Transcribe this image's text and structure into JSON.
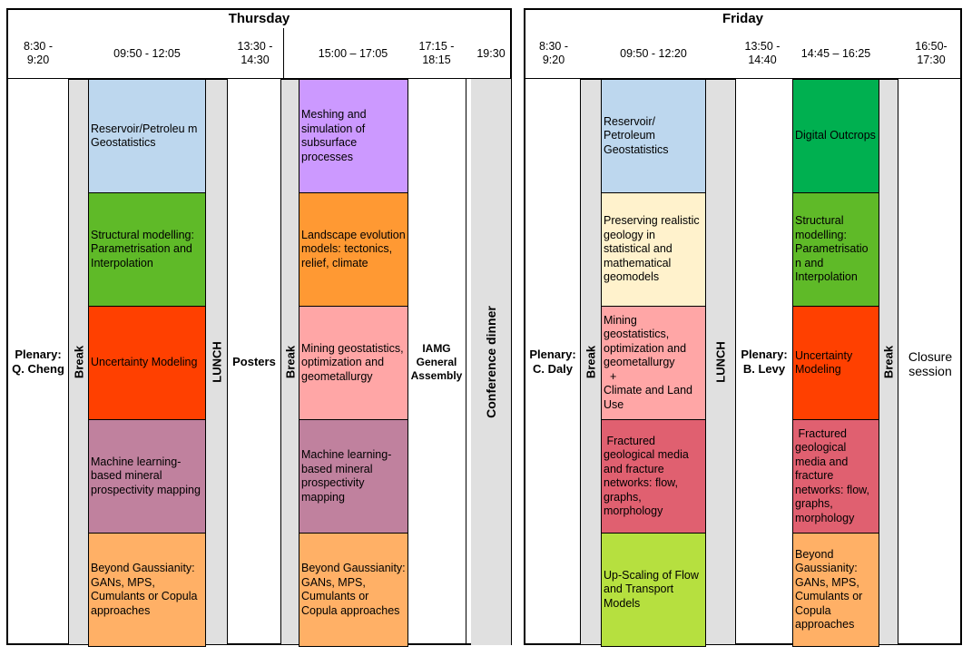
{
  "thursday": {
    "title": "Thursday",
    "times": [
      "8:30 -\n9:20",
      "09:50 - 12:05",
      "13:30 -\n14:30",
      "15:00 – 17:05",
      "17:15 -\n18:15",
      "19:30"
    ],
    "plenary": "Plenary:\nQ. Cheng",
    "break1": "Break",
    "lunch": "LUNCH",
    "posters": "Posters",
    "break2": "Break",
    "assembly": "IAMG\nGeneral\nAssembly",
    "dinner": "Conference dinner",
    "col1": [
      {
        "text": "Reservoir/Petroleu m Geostatistics",
        "color": "#bdd7ee"
      },
      {
        "text": "Structural modelling: Parametrisation and Interpolation",
        "color": "#5fba28"
      },
      {
        "text": "Uncertainty Modeling",
        "color": "#ff4000"
      },
      {
        "text": "Machine learning-based mineral prospectivity mapping",
        "color": "#c0819e"
      },
      {
        "text": "Beyond Gaussianity: GANs, MPS, Cumulants or Copula approaches",
        "color": "#ffb066"
      }
    ],
    "col2": [
      {
        "text": "Meshing and simulation of subsurface processes",
        "color": "#cc99ff"
      },
      {
        "text": "Landscape evolution models: tectonics, relief, climate",
        "color": "#ff9933"
      },
      {
        "text": "Mining geostatistics, optimization and geometallurgy",
        "color": "#ffa6a6"
      },
      {
        "text": "Machine learning-based mineral prospectivity mapping",
        "color": "#c0819e"
      },
      {
        "text": "Beyond Gaussianity: GANs, MPS, Cumulants or Copula approaches",
        "color": "#ffb066"
      }
    ]
  },
  "friday": {
    "title": "Friday",
    "times": [
      "8:30 -\n9:20",
      "09:50 - 12:20",
      "13:50 -\n14:40",
      "14:45 – 16:25",
      "16:50-\n17:30"
    ],
    "plenary1": "Plenary:\nC. Daly",
    "break1": "Break",
    "lunch": "LUNCH",
    "plenary2": "Plenary:\nB. Levy",
    "break2": "Break",
    "closure": "Closure\nsession",
    "col1": [
      {
        "text": "Reservoir/ Petroleum Geostatistics",
        "color": "#bdd7ee"
      },
      {
        "text": "Preserving realistic geology in statistical and mathematical geomodels",
        "color": "#fff2cc"
      },
      {
        "text": "Mining geostatistics, optimization and geometallurgy\n  +\nClimate and Land Use",
        "color": "#ffa6a6"
      },
      {
        "text": " Fractured geological media and fracture networks: flow, graphs, morphology",
        "color": "#e06070"
      },
      {
        "text": "Up-Scaling of Flow and Transport Models",
        "color": "#b6e03f"
      }
    ],
    "col2": [
      {
        "text": "Digital Outcrops",
        "color": "#00b050"
      },
      {
        "text": "Structural modelling: Parametrisatio n and Interpolation",
        "color": "#5fba28"
      },
      {
        "text": "Uncertainty Modeling",
        "color": "#ff4000"
      },
      {
        "text": " Fractured geological media and fracture networks: flow, graphs, morphology",
        "color": "#e06070"
      },
      {
        "text": "Beyond Gaussianity: GANs, MPS, Cumulants or Copula approaches",
        "color": "#ffb066"
      }
    ]
  }
}
